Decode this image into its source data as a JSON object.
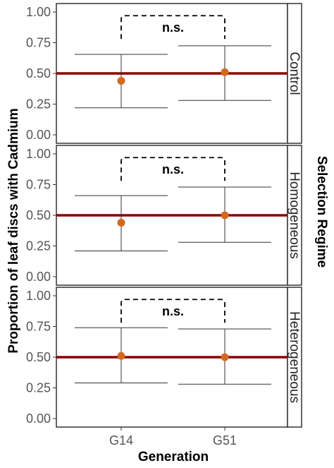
{
  "chart_data": {
    "type": "scatter",
    "x_axis_title": "Generation",
    "y_axis_title": "Proportion of leaf discs with Cadmium",
    "facet_title": "Selection Regime",
    "categories": [
      "G14",
      "G51"
    ],
    "y_ticks": [
      "0.00",
      "0.25",
      "0.50",
      "0.75",
      "1.00"
    ],
    "ylim": [
      0,
      1
    ],
    "reference_line": 0.5,
    "grid": false,
    "colors": {
      "point": "#d2691e",
      "reference_line": "#8b0000",
      "errorbar": "#333333"
    },
    "panels": [
      {
        "label": "Control",
        "significance": "n.s.",
        "points": [
          {
            "x": "G14",
            "y": 0.44,
            "lower": 0.22,
            "upper": 0.655
          },
          {
            "x": "G51",
            "y": 0.51,
            "lower": 0.28,
            "upper": 0.725
          }
        ]
      },
      {
        "label": "Homogeneous",
        "significance": "n.s.",
        "points": [
          {
            "x": "G14",
            "y": 0.44,
            "lower": 0.21,
            "upper": 0.66
          },
          {
            "x": "G51",
            "y": 0.5,
            "lower": 0.28,
            "upper": 0.73
          }
        ]
      },
      {
        "label": "Heterogeneous",
        "significance": "n.s.",
        "points": [
          {
            "x": "G14",
            "y": 0.51,
            "lower": 0.29,
            "upper": 0.74
          },
          {
            "x": "G51",
            "y": 0.5,
            "lower": 0.28,
            "upper": 0.73
          }
        ]
      }
    ]
  }
}
